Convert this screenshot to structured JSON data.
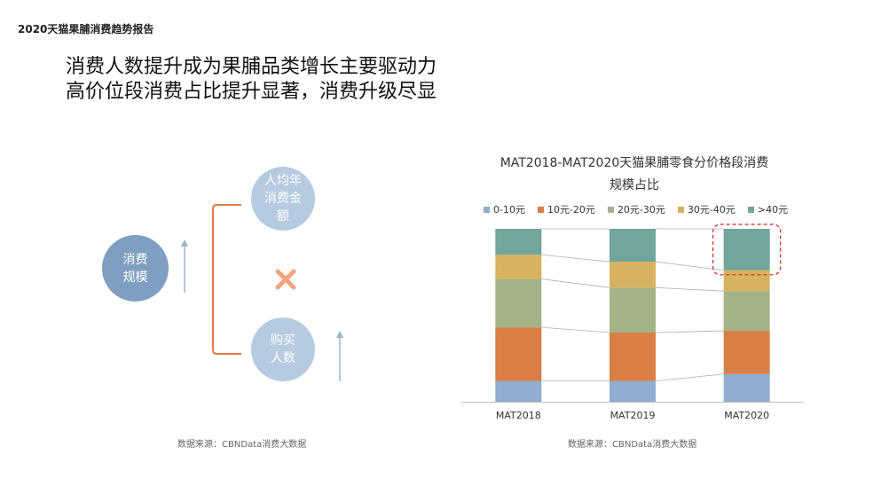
{
  "report_title": "2020天猫果脯消费趋势报告",
  "headline": {
    "line1": "消费人数提升成为果脯品类增长主要驱动力",
    "line2": "高价位段消费占比提升显著，消费升级尽显"
  },
  "diagram": {
    "main_node": "消费\n规模",
    "top_node": "人均年\n消费金\n额",
    "bottom_node": "购买\n人数",
    "operator": "×"
  },
  "source_left": "数据来源：CBNData消费大数据",
  "source_right": "数据来源：CBNData消费大数据",
  "colors": {
    "c0_10": "#8eadd0",
    "c10_20": "#d97e44",
    "c20_30": "#a3b387",
    "c30_40": "#d7b260",
    "c40plus": "#72a59b",
    "bracket": "#e07b45",
    "cross": "#f0a57c",
    "arrow": "#9db4cf",
    "highlight": "#d9221f"
  },
  "chart_data": {
    "type": "bar",
    "stacked": true,
    "percent": true,
    "title": "MAT2018-MAT2020天猫果脯零食分价格段消费规模占比",
    "title_line1": "MAT2018-MAT2020天猫果脯零食分价格段消费",
    "title_line2": "规模占比",
    "categories": [
      "MAT2018",
      "MAT2019",
      "MAT2020"
    ],
    "series": [
      {
        "name": "0-10元",
        "color": "#8eadd0",
        "values": [
          12,
          12,
          16
        ]
      },
      {
        "name": "10元-20元",
        "color": "#d97e44",
        "values": [
          31,
          28,
          25
        ]
      },
      {
        "name": "20元-30元",
        "color": "#a3b387",
        "values": [
          28,
          26,
          23
        ]
      },
      {
        "name": "30元-40元",
        "color": "#d7b260",
        "values": [
          14,
          15,
          12
        ]
      },
      {
        "name": ">40元",
        "color": "#72a59b",
        "values": [
          15,
          19,
          24
        ]
      }
    ],
    "ylim": [
      0,
      100
    ],
    "legend_position": "top",
    "grid": false,
    "highlight_category": "MAT2020",
    "highlight_series": ">40元"
  }
}
